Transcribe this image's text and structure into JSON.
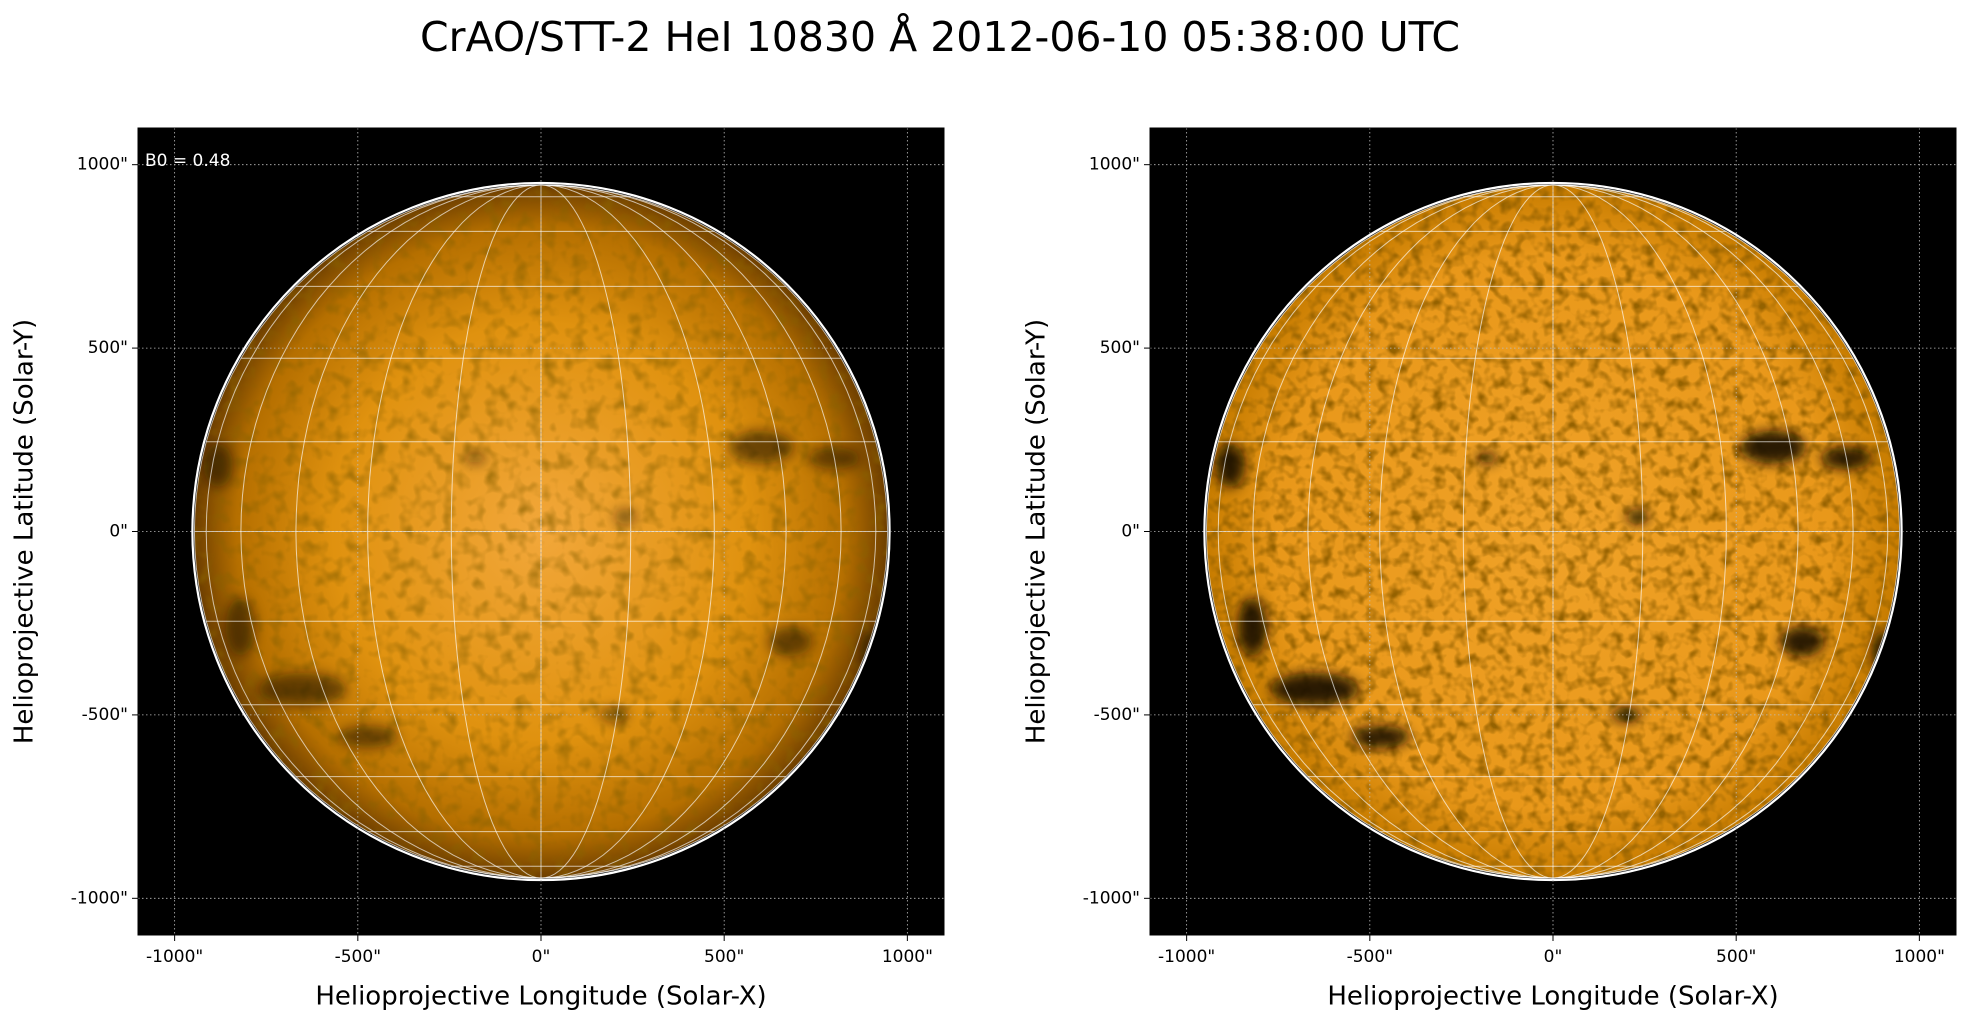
{
  "title": "CrAO/STT-2 HeI 10830 Å 2012-06-10 05:38:00 UTC",
  "chart_data": [
    {
      "type": "image",
      "xlabel": "Helioprojective Longitude (Solar-X)",
      "ylabel": "Helioprojective Latitude (Solar-Y)",
      "annotation": "B0 = 0.48",
      "xlim": [
        -1100,
        1100
      ],
      "ylim": [
        -1100,
        1100
      ],
      "xticks": [
        {
          "value": -1000,
          "label": "-1000\""
        },
        {
          "value": -500,
          "label": "-500\""
        },
        {
          "value": 0,
          "label": "0\""
        },
        {
          "value": 500,
          "label": "500\""
        },
        {
          "value": 1000,
          "label": "1000\""
        }
      ],
      "yticks": [
        {
          "value": -1000,
          "label": "-1000\""
        },
        {
          "value": -500,
          "label": "-500\""
        },
        {
          "value": 0,
          "label": "0\""
        },
        {
          "value": 500,
          "label": "500\""
        },
        {
          "value": 1000,
          "label": "1000\""
        }
      ],
      "grid": true
    },
    {
      "type": "image",
      "xlabel": "Helioprojective Longitude (Solar-X)",
      "ylabel": "Helioprojective Latitude (Solar-Y)",
      "xlim": [
        -1100,
        1100
      ],
      "ylim": [
        -1100,
        1100
      ],
      "xticks": [
        {
          "value": -1000,
          "label": "-1000\""
        },
        {
          "value": -500,
          "label": "-500\""
        },
        {
          "value": 0,
          "label": "0\""
        },
        {
          "value": 500,
          "label": "500\""
        },
        {
          "value": 1000,
          "label": "1000\""
        }
      ],
      "yticks": [
        {
          "value": -1000,
          "label": "-1000\""
        },
        {
          "value": -500,
          "label": "-500\""
        },
        {
          "value": 0,
          "label": "0\""
        },
        {
          "value": 500,
          "label": "500\""
        },
        {
          "value": 1000,
          "label": "1000\""
        }
      ],
      "grid": true
    }
  ]
}
